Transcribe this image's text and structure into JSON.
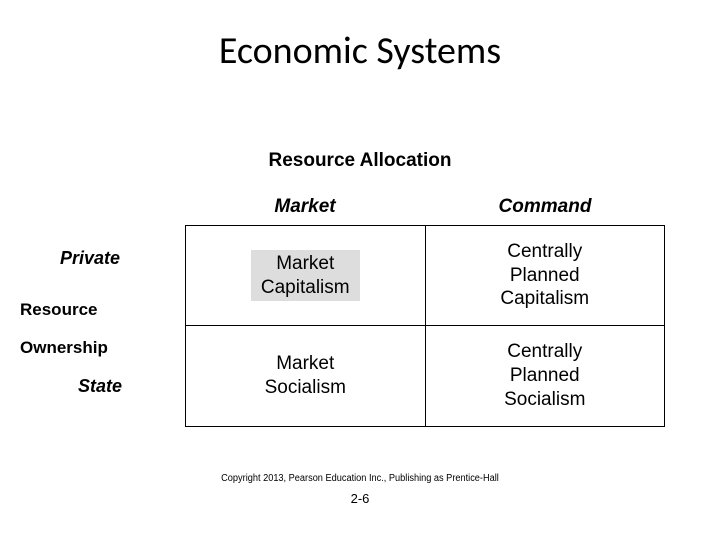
{
  "title": {
    "text": "Economic Systems",
    "fontsize": 38,
    "color": "#000000"
  },
  "subtitle": {
    "text": "Resource Allocation",
    "fontsize": 19,
    "color": "#000000"
  },
  "columns": {
    "left": {
      "label": "Market",
      "fontsize": 19
    },
    "right": {
      "label": "Command",
      "fontsize": 19
    }
  },
  "rows": {
    "top": {
      "label": "Private",
      "fontsize": 18
    },
    "bottom": {
      "label": "State",
      "fontsize": 18
    }
  },
  "axis": {
    "resource": {
      "text": "Resource",
      "fontsize": 17
    },
    "ownership": {
      "text": "Ownership",
      "fontsize": 17
    }
  },
  "matrix": {
    "border_color": "#000000",
    "cell_fontsize": 19,
    "highlight_bg": "#dddddd",
    "cells": {
      "top_left": "Market\nCapitalism",
      "top_right": "Centrally\nPlanned\nCapitalism",
      "bottom_left": "Market\nSocialism",
      "bottom_right": "Centrally\nPlanned\nSocialism"
    }
  },
  "copyright": {
    "text": "Copyright 2013, Pearson Education Inc., Publishing as Prentice-Hall",
    "fontsize": 10
  },
  "pagenum": {
    "text": "2-6",
    "fontsize": 13
  }
}
